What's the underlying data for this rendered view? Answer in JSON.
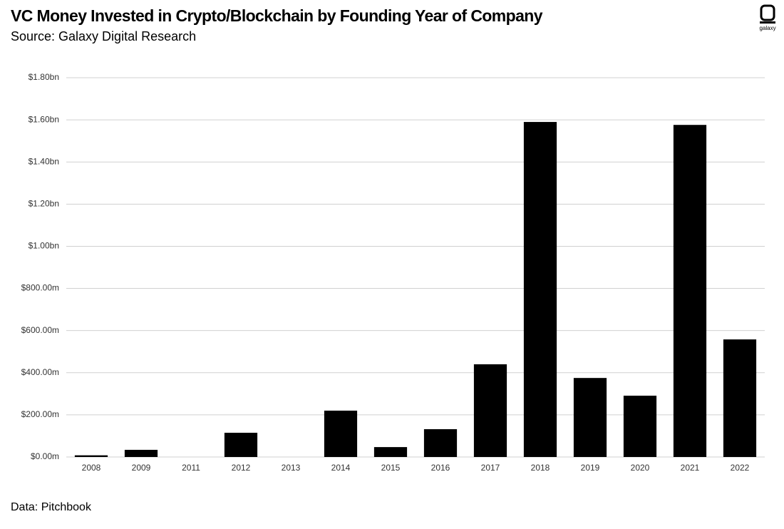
{
  "chart_data": {
    "type": "bar",
    "title": "VC Money Invested in Crypto/Blockchain by Founding Year of Company",
    "subtitle": "Source: Galaxy Digital Research",
    "footnote": "Data: Pitchbook",
    "logo_text": "galaxy",
    "categories": [
      "2008",
      "2009",
      "2011",
      "2012",
      "2013",
      "2014",
      "2015",
      "2016",
      "2017",
      "2018",
      "2019",
      "2020",
      "2021",
      "2022"
    ],
    "values": [
      8,
      34,
      0,
      115,
      0,
      220,
      47,
      132,
      440,
      1590,
      375,
      291,
      1576,
      558
    ],
    "color": "#000000",
    "ylim": [
      0,
      1800
    ],
    "yticks": [
      {
        "value": 0,
        "label": "$0.00m"
      },
      {
        "value": 200,
        "label": "$200.00m"
      },
      {
        "value": 400,
        "label": "$400.00m"
      },
      {
        "value": 600,
        "label": "$600.00m"
      },
      {
        "value": 800,
        "label": "$800.00m"
      },
      {
        "value": 1000,
        "label": "$1.00bn"
      },
      {
        "value": 1200,
        "label": "$1.20bn"
      },
      {
        "value": 1400,
        "label": "$1.40bn"
      },
      {
        "value": 1600,
        "label": "$1.60bn"
      },
      {
        "value": 1800,
        "label": "$1.80bn"
      }
    ],
    "grid": true
  }
}
